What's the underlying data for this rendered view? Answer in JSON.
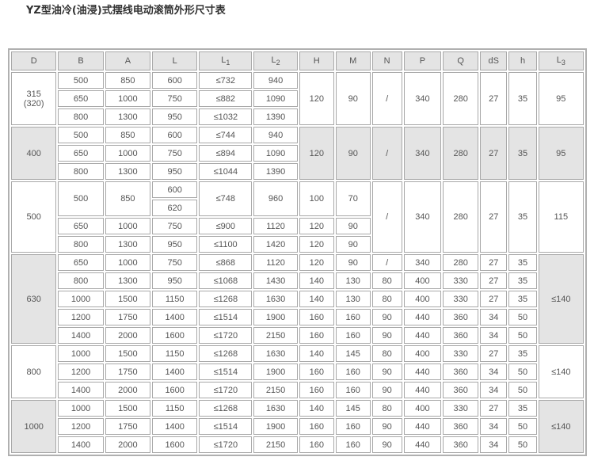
{
  "title": "YZ型油冷(油浸)式摆线电动滚筒外形尺寸表",
  "headers": [
    [
      "D",
      ""
    ],
    [
      "B",
      ""
    ],
    [
      "A",
      ""
    ],
    [
      "L",
      ""
    ],
    [
      "L",
      "1"
    ],
    [
      "L",
      "2"
    ],
    [
      "H",
      ""
    ],
    [
      "M",
      ""
    ],
    [
      "N",
      ""
    ],
    [
      "P",
      ""
    ],
    [
      "Q",
      ""
    ],
    [
      "dS",
      ""
    ],
    [
      "h",
      ""
    ],
    [
      "L",
      "3"
    ]
  ],
  "groups": [
    {
      "shaded": false,
      "rows": [
        [
          {
            "t": "315\n(320)",
            "rs": 3
          },
          {
            "t": "500"
          },
          {
            "t": "850"
          },
          {
            "t": "600"
          },
          {
            "t": "≤732"
          },
          {
            "t": "940"
          },
          {
            "t": "120",
            "rs": 3
          },
          {
            "t": "90",
            "rs": 3
          },
          {
            "t": "/",
            "rs": 3
          },
          {
            "t": "340",
            "rs": 3
          },
          {
            "t": "280",
            "rs": 3
          },
          {
            "t": "27",
            "rs": 3
          },
          {
            "t": "35",
            "rs": 3
          },
          {
            "t": "95",
            "rs": 3
          }
        ],
        [
          {
            "t": "650"
          },
          {
            "t": "1000"
          },
          {
            "t": "750"
          },
          {
            "t": "≤882"
          },
          {
            "t": "1090"
          }
        ],
        [
          {
            "t": "800"
          },
          {
            "t": "1300"
          },
          {
            "t": "950"
          },
          {
            "t": "≤1032"
          },
          {
            "t": "1390"
          }
        ]
      ]
    },
    {
      "shaded": true,
      "rows": [
        [
          {
            "t": "400",
            "rs": 3
          },
          {
            "t": "500"
          },
          {
            "t": "850"
          },
          {
            "t": "600"
          },
          {
            "t": "≤744"
          },
          {
            "t": "940"
          },
          {
            "t": "120",
            "rs": 3
          },
          {
            "t": "90",
            "rs": 3
          },
          {
            "t": "/",
            "rs": 3
          },
          {
            "t": "340",
            "rs": 3
          },
          {
            "t": "280",
            "rs": 3
          },
          {
            "t": "27",
            "rs": 3
          },
          {
            "t": "35",
            "rs": 3
          },
          {
            "t": "95",
            "rs": 3
          }
        ],
        [
          {
            "t": "650"
          },
          {
            "t": "1000"
          },
          {
            "t": "750"
          },
          {
            "t": "≤894"
          },
          {
            "t": "1090"
          }
        ],
        [
          {
            "t": "800"
          },
          {
            "t": "1300"
          },
          {
            "t": "950"
          },
          {
            "t": "≤1044"
          },
          {
            "t": "1390"
          }
        ]
      ]
    },
    {
      "shaded": false,
      "rows": [
        [
          {
            "t": "500",
            "rs": 4
          },
          {
            "t": "500",
            "rs": 2
          },
          {
            "t": "850",
            "rs": 2
          },
          {
            "t": "600"
          },
          {
            "t": "≤748",
            "rs": 2
          },
          {
            "t": "960",
            "rs": 2
          },
          {
            "t": "100",
            "rs": 2
          },
          {
            "t": "70",
            "rs": 2
          },
          {
            "t": "/",
            "rs": 4
          },
          {
            "t": "340",
            "rs": 4
          },
          {
            "t": "280",
            "rs": 4
          },
          {
            "t": "27",
            "rs": 4
          },
          {
            "t": "35",
            "rs": 4
          },
          {
            "t": "115",
            "rs": 4
          }
        ],
        [
          {
            "t": "620"
          }
        ],
        [
          {
            "t": "650"
          },
          {
            "t": "1000"
          },
          {
            "t": "750"
          },
          {
            "t": "≤900"
          },
          {
            "t": "1120"
          },
          {
            "t": "120"
          },
          {
            "t": "90"
          }
        ],
        [
          {
            "t": "800"
          },
          {
            "t": "1300"
          },
          {
            "t": "950"
          },
          {
            "t": "≤1100"
          },
          {
            "t": "1420"
          },
          {
            "t": "120"
          },
          {
            "t": "90"
          }
        ]
      ]
    },
    {
      "shaded": true,
      "rows": [
        [
          {
            "t": "630",
            "rs": 5
          },
          {
            "t": "650"
          },
          {
            "t": "1000"
          },
          {
            "t": "750"
          },
          {
            "t": "≤868"
          },
          {
            "t": "1120"
          },
          {
            "t": "120"
          },
          {
            "t": "90"
          },
          {
            "t": "/"
          },
          {
            "t": "340"
          },
          {
            "t": "280"
          },
          {
            "t": "27"
          },
          {
            "t": "35"
          },
          {
            "t": "≤140",
            "rs": 5
          }
        ],
        [
          {
            "t": "800"
          },
          {
            "t": "1300"
          },
          {
            "t": "950"
          },
          {
            "t": "≤1068"
          },
          {
            "t": "1430"
          },
          {
            "t": "140"
          },
          {
            "t": "130"
          },
          {
            "t": "80"
          },
          {
            "t": "400"
          },
          {
            "t": "330"
          },
          {
            "t": "27"
          },
          {
            "t": "35"
          }
        ],
        [
          {
            "t": "1000"
          },
          {
            "t": "1500"
          },
          {
            "t": "1150"
          },
          {
            "t": "≤1268"
          },
          {
            "t": "1630"
          },
          {
            "t": "140"
          },
          {
            "t": "130"
          },
          {
            "t": "80"
          },
          {
            "t": "400"
          },
          {
            "t": "330"
          },
          {
            "t": "27"
          },
          {
            "t": "35"
          }
        ],
        [
          {
            "t": "1200"
          },
          {
            "t": "1750"
          },
          {
            "t": "1400"
          },
          {
            "t": "≤1514"
          },
          {
            "t": "1900"
          },
          {
            "t": "160"
          },
          {
            "t": "160"
          },
          {
            "t": "90"
          },
          {
            "t": "440"
          },
          {
            "t": "360"
          },
          {
            "t": "34"
          },
          {
            "t": "50"
          }
        ],
        [
          {
            "t": "1400"
          },
          {
            "t": "2000"
          },
          {
            "t": "1600"
          },
          {
            "t": "≤1720"
          },
          {
            "t": "2150"
          },
          {
            "t": "160"
          },
          {
            "t": "160"
          },
          {
            "t": "90"
          },
          {
            "t": "440"
          },
          {
            "t": "360"
          },
          {
            "t": "34"
          },
          {
            "t": "50"
          }
        ]
      ]
    },
    {
      "shaded": false,
      "rows": [
        [
          {
            "t": "800",
            "rs": 3
          },
          {
            "t": "1000"
          },
          {
            "t": "1500"
          },
          {
            "t": "1150"
          },
          {
            "t": "≤1268"
          },
          {
            "t": "1630"
          },
          {
            "t": "140"
          },
          {
            "t": "145"
          },
          {
            "t": "80"
          },
          {
            "t": "400"
          },
          {
            "t": "330"
          },
          {
            "t": "27"
          },
          {
            "t": "35"
          },
          {
            "t": "≤140",
            "rs": 3
          }
        ],
        [
          {
            "t": "1200"
          },
          {
            "t": "1750"
          },
          {
            "t": "1400"
          },
          {
            "t": "≤1514"
          },
          {
            "t": "1900"
          },
          {
            "t": "160"
          },
          {
            "t": "160"
          },
          {
            "t": "90"
          },
          {
            "t": "440"
          },
          {
            "t": "360"
          },
          {
            "t": "34"
          },
          {
            "t": "50"
          }
        ],
        [
          {
            "t": "1400"
          },
          {
            "t": "2000"
          },
          {
            "t": "1600"
          },
          {
            "t": "≤1720"
          },
          {
            "t": "2150"
          },
          {
            "t": "160"
          },
          {
            "t": "160"
          },
          {
            "t": "90"
          },
          {
            "t": "440"
          },
          {
            "t": "360"
          },
          {
            "t": "34"
          },
          {
            "t": "50"
          }
        ]
      ]
    },
    {
      "shaded": true,
      "rows": [
        [
          {
            "t": "1000",
            "rs": 3
          },
          {
            "t": "1000"
          },
          {
            "t": "1500"
          },
          {
            "t": "1150"
          },
          {
            "t": "≤1268"
          },
          {
            "t": "1630"
          },
          {
            "t": "140"
          },
          {
            "t": "145"
          },
          {
            "t": "80"
          },
          {
            "t": "400"
          },
          {
            "t": "330"
          },
          {
            "t": "27"
          },
          {
            "t": "35"
          },
          {
            "t": "≤140",
            "rs": 3
          }
        ],
        [
          {
            "t": "1200"
          },
          {
            "t": "1750"
          },
          {
            "t": "1400"
          },
          {
            "t": "≤1514"
          },
          {
            "t": "1900"
          },
          {
            "t": "160"
          },
          {
            "t": "160"
          },
          {
            "t": "90"
          },
          {
            "t": "440"
          },
          {
            "t": "360"
          },
          {
            "t": "34"
          },
          {
            "t": "50"
          }
        ],
        [
          {
            "t": "1400"
          },
          {
            "t": "2000"
          },
          {
            "t": "1600"
          },
          {
            "t": "≤1720"
          },
          {
            "t": "2150"
          },
          {
            "t": "160"
          },
          {
            "t": "160"
          },
          {
            "t": "90"
          },
          {
            "t": "440"
          },
          {
            "t": "360"
          },
          {
            "t": "34"
          },
          {
            "t": "50"
          }
        ]
      ]
    }
  ]
}
